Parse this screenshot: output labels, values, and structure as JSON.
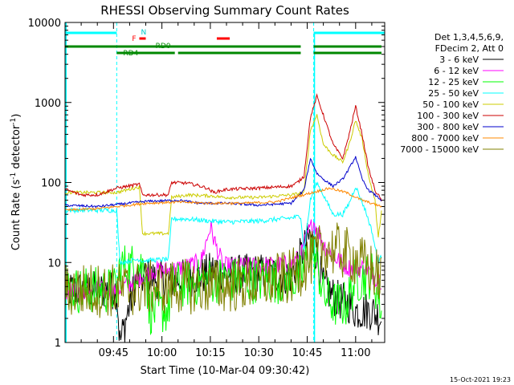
{
  "chart_data": {
    "type": "line",
    "title": "RHESSI Observing Summary Count Rates",
    "xlabel": "Start Time (10-Mar-04 09:30:42)",
    "ylabel_main": "Count Rate (s",
    "ylabel_sup1": "-1",
    "ylabel_mid": " detector",
    "ylabel_sup2": "-1",
    "ylabel_end": ")",
    "yscale": "log",
    "ylim": [
      1,
      10000
    ],
    "xlim": [
      "09:30",
      "11:09"
    ],
    "x_ticks": [
      "09:45",
      "10:00",
      "10:15",
      "10:30",
      "10:45",
      "11:00"
    ],
    "y_ticks": [
      "1",
      "10",
      "100",
      "1000",
      "10000"
    ],
    "timestamp": "15-Oct-2021 19:23",
    "legend": {
      "placement": "top-right",
      "header": [
        "Det 1,3,4,5,6,9,",
        "FDecim 2, Att 0"
      ],
      "entries": [
        {
          "label": "3 - 6 keV",
          "color": "#000000"
        },
        {
          "label": "6 - 12 keV",
          "color": "#ff00ff"
        },
        {
          "label": "12 - 25 keV",
          "color": "#00ff00"
        },
        {
          "label": "25 - 50 keV",
          "color": "#00ffff"
        },
        {
          "label": "50 - 100 keV",
          "color": "#cccc00"
        },
        {
          "label": "100 - 300 keV",
          "color": "#cc0000"
        },
        {
          "label": "300 - 800 keV",
          "color": "#0000cc"
        },
        {
          "label": "800 - 7000 keV",
          "color": "#ff8800"
        },
        {
          "label": "7000 - 15000 keV",
          "color": "#808000"
        }
      ]
    },
    "flags": {
      "N_label": "N",
      "F_label": "F",
      "RD0_label": "RD0",
      "RD4_label": "RD4",
      "night": [
        [
          "09:30",
          "09:46"
        ],
        [
          "10:47",
          "11:09"
        ]
      ],
      "flare": [
        [
          "09:53",
          "09:55"
        ],
        [
          "10:17",
          "10:21"
        ]
      ],
      "rd0": [
        [
          "09:30",
          "10:43"
        ],
        [
          "10:47",
          "11:08"
        ]
      ],
      "rd4": [
        [
          "09:46",
          "10:04"
        ],
        [
          "10:05",
          "10:43"
        ],
        [
          "10:47",
          "11:08"
        ]
      ],
      "dashed_lines": [
        "09:46",
        "10:47"
      ]
    },
    "series": [
      {
        "name": "3 - 6 keV",
        "color": "#000000",
        "noise": 0.25,
        "x": [
          "09:30",
          "09:46",
          "09:47",
          "09:52",
          "09:55",
          "10:00",
          "10:03",
          "10:08",
          "10:13",
          "10:17",
          "10:20",
          "10:30",
          "10:40",
          "10:43",
          "10:46",
          "10:48",
          "10:50",
          "10:54",
          "10:58",
          "11:00",
          "11:05",
          "11:08"
        ],
        "y": [
          4.5,
          4.5,
          1.0,
          6,
          6.5,
          6,
          6,
          6.5,
          7,
          8.5,
          7,
          7.5,
          6.8,
          12,
          22,
          12,
          5,
          3.5,
          3,
          2.5,
          2.5,
          2
        ]
      },
      {
        "name": "6 - 12 keV",
        "color": "#ff00ff",
        "noise": 0.12,
        "x": [
          "09:30",
          "09:46",
          "09:52",
          "09:57",
          "10:03",
          "10:08",
          "10:12",
          "10:15",
          "10:17",
          "10:19",
          "10:22",
          "10:30",
          "10:40",
          "10:43",
          "10:45",
          "10:47",
          "10:50",
          "10:53",
          "10:57",
          "11:00",
          "11:03",
          "11:05",
          "11:08"
        ],
        "y": [
          4.5,
          4.5,
          6,
          8,
          8,
          9,
          10,
          28,
          15,
          9,
          9,
          9,
          9.5,
          12,
          22,
          32,
          17,
          12,
          9,
          8,
          9,
          7,
          6
        ]
      },
      {
        "name": "12 - 25 keV",
        "color": "#00ff00",
        "noise": 0.3,
        "x": [
          "09:30",
          "09:46",
          "09:47",
          "09:55",
          "09:56",
          "10:02",
          "10:03",
          "10:15",
          "10:30",
          "10:42",
          "10:44",
          "10:46",
          "10:48",
          "10:50",
          "10:53",
          "10:57",
          "11:00",
          "11:05",
          "11:07",
          "11:08"
        ],
        "y": [
          4.5,
          4.5,
          9,
          9,
          2.5,
          2.5,
          5,
          6,
          6,
          6,
          8,
          16,
          10,
          4,
          3,
          3,
          6,
          7,
          4,
          2.5
        ]
      },
      {
        "name": "25 - 50 keV",
        "color": "#00ffff",
        "noise": 0.03,
        "x": [
          "09:30",
          "09:46",
          "09:47",
          "09:53",
          "09:54",
          "10:02",
          "10:03",
          "10:08",
          "10:15",
          "10:20",
          "10:30",
          "10:40",
          "10:43",
          "10:44",
          "10:46",
          "10:48",
          "10:50",
          "10:53",
          "10:56",
          "10:58",
          "11:00",
          "11:03",
          "11:05",
          "11:07",
          "11:08"
        ],
        "y": [
          45,
          45,
          10,
          11,
          10.5,
          11,
          35,
          35,
          33,
          32,
          33,
          36,
          38,
          14,
          60,
          100,
          70,
          40,
          40,
          55,
          90,
          45,
          25,
          10,
          12
        ]
      },
      {
        "name": "50 - 100 keV",
        "color": "#cccc00",
        "noise": 0.02,
        "x": [
          "09:30",
          "09:46",
          "09:53",
          "09:54",
          "10:02",
          "10:03",
          "10:08",
          "10:15",
          "10:20",
          "10:30",
          "10:40",
          "10:42",
          "10:44",
          "10:46",
          "10:48",
          "10:50",
          "10:53",
          "10:56",
          "10:58",
          "11:00",
          "11:02",
          "11:04",
          "11:06",
          "11:07",
          "11:08"
        ],
        "y": [
          75,
          75,
          88,
          23,
          23,
          65,
          70,
          68,
          65,
          65,
          70,
          72,
          75,
          450,
          700,
          300,
          220,
          180,
          300,
          600,
          350,
          120,
          60,
          20,
          45
        ]
      },
      {
        "name": "100 - 300 keV",
        "color": "#cc0000",
        "noise": 0.02,
        "x": [
          "09:30",
          "09:35",
          "09:40",
          "09:46",
          "09:53",
          "09:54",
          "10:02",
          "10:03",
          "10:08",
          "10:12",
          "10:14",
          "10:16",
          "10:20",
          "10:30",
          "10:40",
          "10:42",
          "10:44",
          "10:46",
          "10:48",
          "10:50",
          "10:53",
          "10:56",
          "10:58",
          "11:00",
          "11:02",
          "11:04",
          "11:06",
          "11:08"
        ],
        "y": [
          82,
          70,
          70,
          85,
          95,
          70,
          70,
          100,
          98,
          90,
          85,
          75,
          82,
          85,
          90,
          100,
          120,
          650,
          1200,
          700,
          300,
          200,
          400,
          900,
          400,
          150,
          80,
          60
        ]
      },
      {
        "name": "300 - 800 keV",
        "color": "#0000cc",
        "noise": 0.015,
        "x": [
          "09:30",
          "09:40",
          "09:46",
          "09:55",
          "10:05",
          "10:12",
          "10:20",
          "10:30",
          "10:40",
          "10:44",
          "10:46",
          "10:48",
          "10:50",
          "10:53",
          "10:56",
          "10:58",
          "11:00",
          "11:02",
          "11:04",
          "11:06",
          "11:08"
        ],
        "y": [
          52,
          50,
          53,
          58,
          60,
          55,
          55,
          52,
          55,
          80,
          200,
          130,
          110,
          90,
          110,
          150,
          210,
          110,
          80,
          70,
          60
        ]
      },
      {
        "name": "800 - 7000 keV",
        "color": "#ff8800",
        "noise": 0.015,
        "x": [
          "09:30",
          "09:40",
          "09:46",
          "09:55",
          "10:05",
          "10:15",
          "10:25",
          "10:35",
          "10:45",
          "10:52",
          "10:57",
          "11:02",
          "11:08"
        ],
        "y": [
          45,
          47,
          50,
          55,
          57,
          55,
          55,
          57,
          72,
          85,
          75,
          60,
          50
        ]
      },
      {
        "name": "7000 - 15000 keV",
        "color": "#808000",
        "noise": 0.35,
        "x": [
          "09:30",
          "09:46",
          "09:55",
          "10:05",
          "10:15",
          "10:30",
          "10:40",
          "10:45",
          "10:50",
          "10:55",
          "11:00",
          "11:05",
          "11:08"
        ],
        "y": [
          4.5,
          4.5,
          4.8,
          5,
          5,
          5.5,
          6.5,
          10,
          15,
          14,
          11,
          8,
          6
        ]
      }
    ]
  }
}
